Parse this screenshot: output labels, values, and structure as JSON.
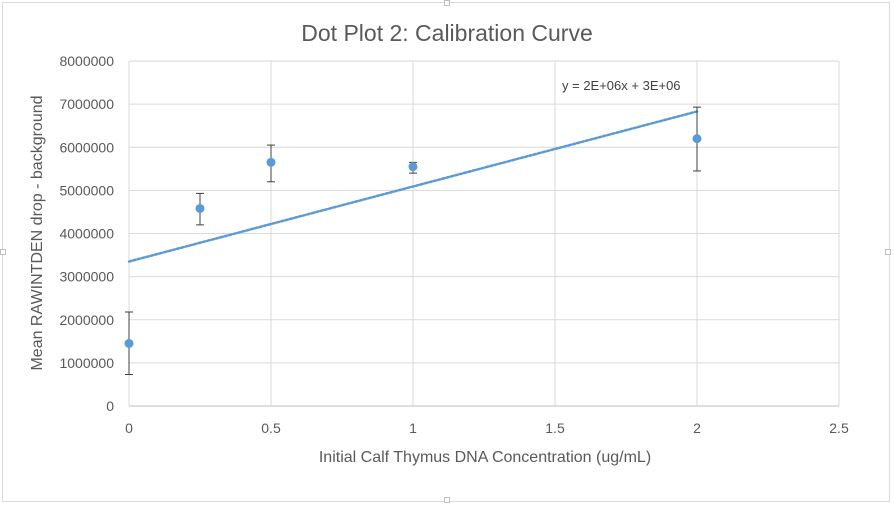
{
  "chart_data": {
    "type": "scatter",
    "title": "Dot Plot 2: Calibration Curve",
    "xlabel": "Initial Calf Thymus DNA Concentration (ug/mL)",
    "ylabel": "Mean RAWINTDEN drop - background",
    "xlim": [
      0,
      2.5
    ],
    "ylim": [
      0,
      8000000
    ],
    "x_ticks": [
      0,
      0.5,
      1,
      1.5,
      2,
      2.5
    ],
    "x_tick_labels": [
      "0",
      "0.5",
      "1",
      "1.5",
      "2",
      "2.5"
    ],
    "y_ticks": [
      0,
      1000000,
      2000000,
      3000000,
      4000000,
      5000000,
      6000000,
      7000000,
      8000000
    ],
    "y_tick_labels": [
      "0",
      "1000000",
      "2000000",
      "3000000",
      "4000000",
      "5000000",
      "6000000",
      "7000000",
      "8000000"
    ],
    "grid": "horizontal",
    "marker_color": "#5b9bd5",
    "trendline_color": "#5b9bd5",
    "errorbar_color": "#404040",
    "points": [
      {
        "x": 0,
        "y": 1450000,
        "err_low": 730000,
        "err_high": 2180000
      },
      {
        "x": 0.25,
        "y": 4580000,
        "err_low": 4200000,
        "err_high": 4930000
      },
      {
        "x": 0.5,
        "y": 5650000,
        "err_low": 5200000,
        "err_high": 6050000
      },
      {
        "x": 1,
        "y": 5550000,
        "err_low": 5400000,
        "err_high": 5650000
      },
      {
        "x": 2,
        "y": 6200000,
        "err_low": 5450000,
        "err_high": 6930000
      }
    ],
    "trendline": {
      "type": "linear",
      "x_start": 0,
      "x_end": 2,
      "y_start": 3350000,
      "y_end": 6830000,
      "equation_label": "y = 2E+06x + 3E+06"
    }
  }
}
